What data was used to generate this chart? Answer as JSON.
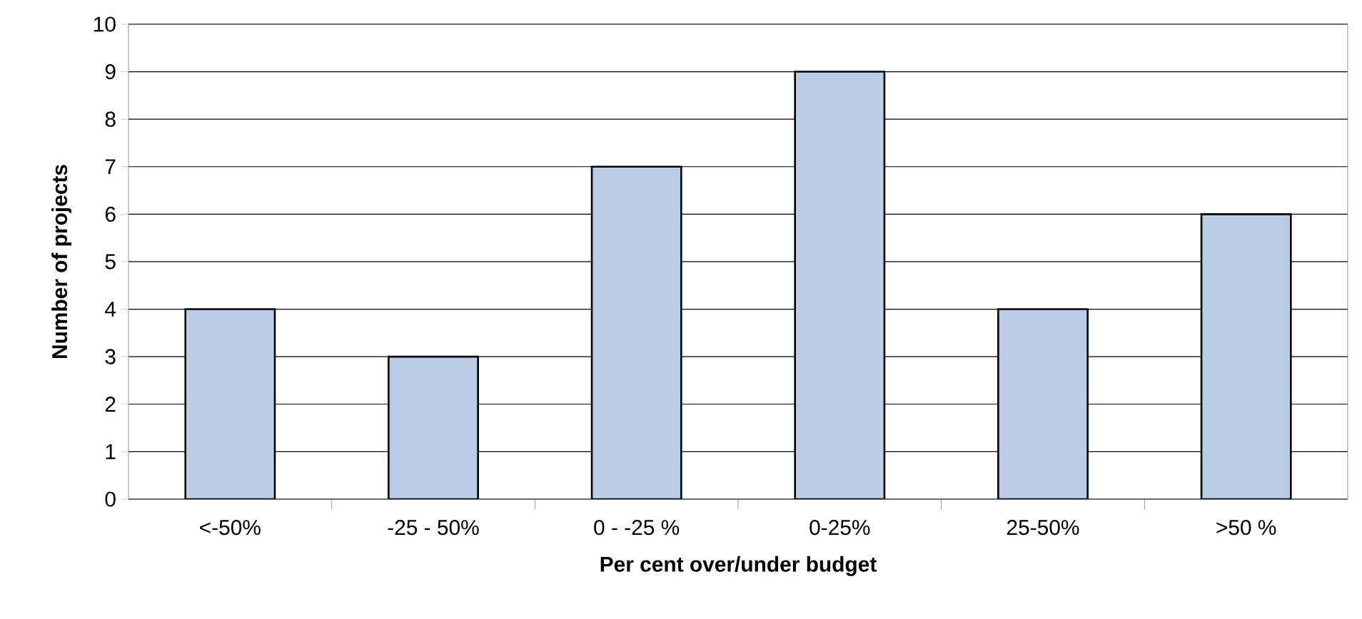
{
  "chart_data": {
    "type": "bar",
    "xlabel": "Per cent over/under budget",
    "ylabel": "Number of projects",
    "categories": [
      "<-50%",
      "-25 - 50%",
      "0 - -25 %",
      "0-25%",
      "25-50%",
      ">50 %"
    ],
    "values": [
      4,
      3,
      7,
      9,
      4,
      6
    ],
    "color": "#b9cde5",
    "ylim": [
      0,
      10
    ],
    "yticks": [
      0,
      1,
      2,
      3,
      4,
      5,
      6,
      7,
      8,
      9,
      10
    ],
    "grid": "y"
  }
}
